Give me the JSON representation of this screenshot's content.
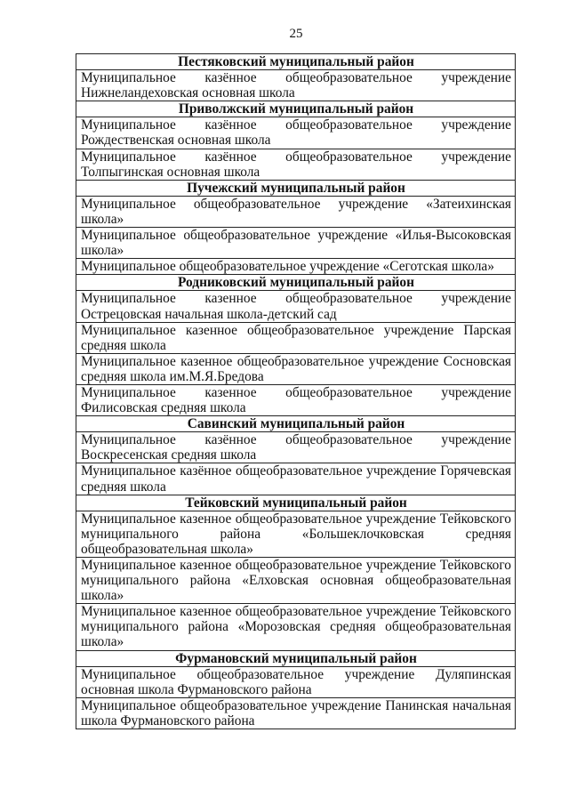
{
  "page_number": "25",
  "sections": [
    {
      "title": "Пестяковский муниципальный район",
      "items": [
        "Муниципальное казённое общеобразовательное учреждение Нижнеландеховская основная школа"
      ]
    },
    {
      "title": "Приволжский муниципальный район",
      "items": [
        "Муниципальное казённое общеобразовательное учреждение Рождественская основная школа",
        "Муниципальное казённое общеобразовательное учреждение Толпыгинская основная школа"
      ]
    },
    {
      "title": "Пучежский муниципальный район",
      "items": [
        "Муниципальное общеобразовательное учреждение «Затеихинская школа»",
        "Муниципальное общеобразовательное учреждение «Илья-Высоковская школа»",
        "Муниципальное общеобразовательное учреждение «Сеготская школа»"
      ]
    },
    {
      "title": "Родниковский муниципальный район",
      "items": [
        "Муниципальное казенное общеобразовательное учреждение Острецовская начальная школа-детский сад",
        "Муниципальное казенное общеобразовательное учреждение Парская средняя школа",
        "Муниципальное казенное общеобразовательное учреждение Сосновская средняя школа им.М.Я.Бредова",
        "Муниципальное казенное общеобразовательное учреждение Филисовская средняя школа"
      ]
    },
    {
      "title": "Савинский муниципальный район",
      "items": [
        "Муниципальное казённое общеобразовательное учреждение Воскресенская средняя школа",
        "Муниципальное казённое общеобразовательное учреждение Горячевская средняя школа"
      ]
    },
    {
      "title": "Тейковский муниципальный район",
      "items": [
        "Муниципальное казенное общеобразовательное учреждение Тейковского муниципального района «Большеклочковская средняя общеобразовательная школа»",
        "Муниципальное казенное общеобразовательное учреждение Тейковского муниципального района «Елховская основная общеобразовательная школа»",
        "Муниципальное казенное общеобразовательное учреждение Тейковского муниципального района «Морозовская средняя общеобразовательная школа»"
      ]
    },
    {
      "title": "Фурмановский муниципальный район",
      "items": [
        "Муниципальное общеобразовательное учреждение Дуляпинская основная школа Фурмановского района",
        "Муниципальное общеобразовательное учреждение Панинская начальная школа Фурмановского района"
      ]
    }
  ]
}
